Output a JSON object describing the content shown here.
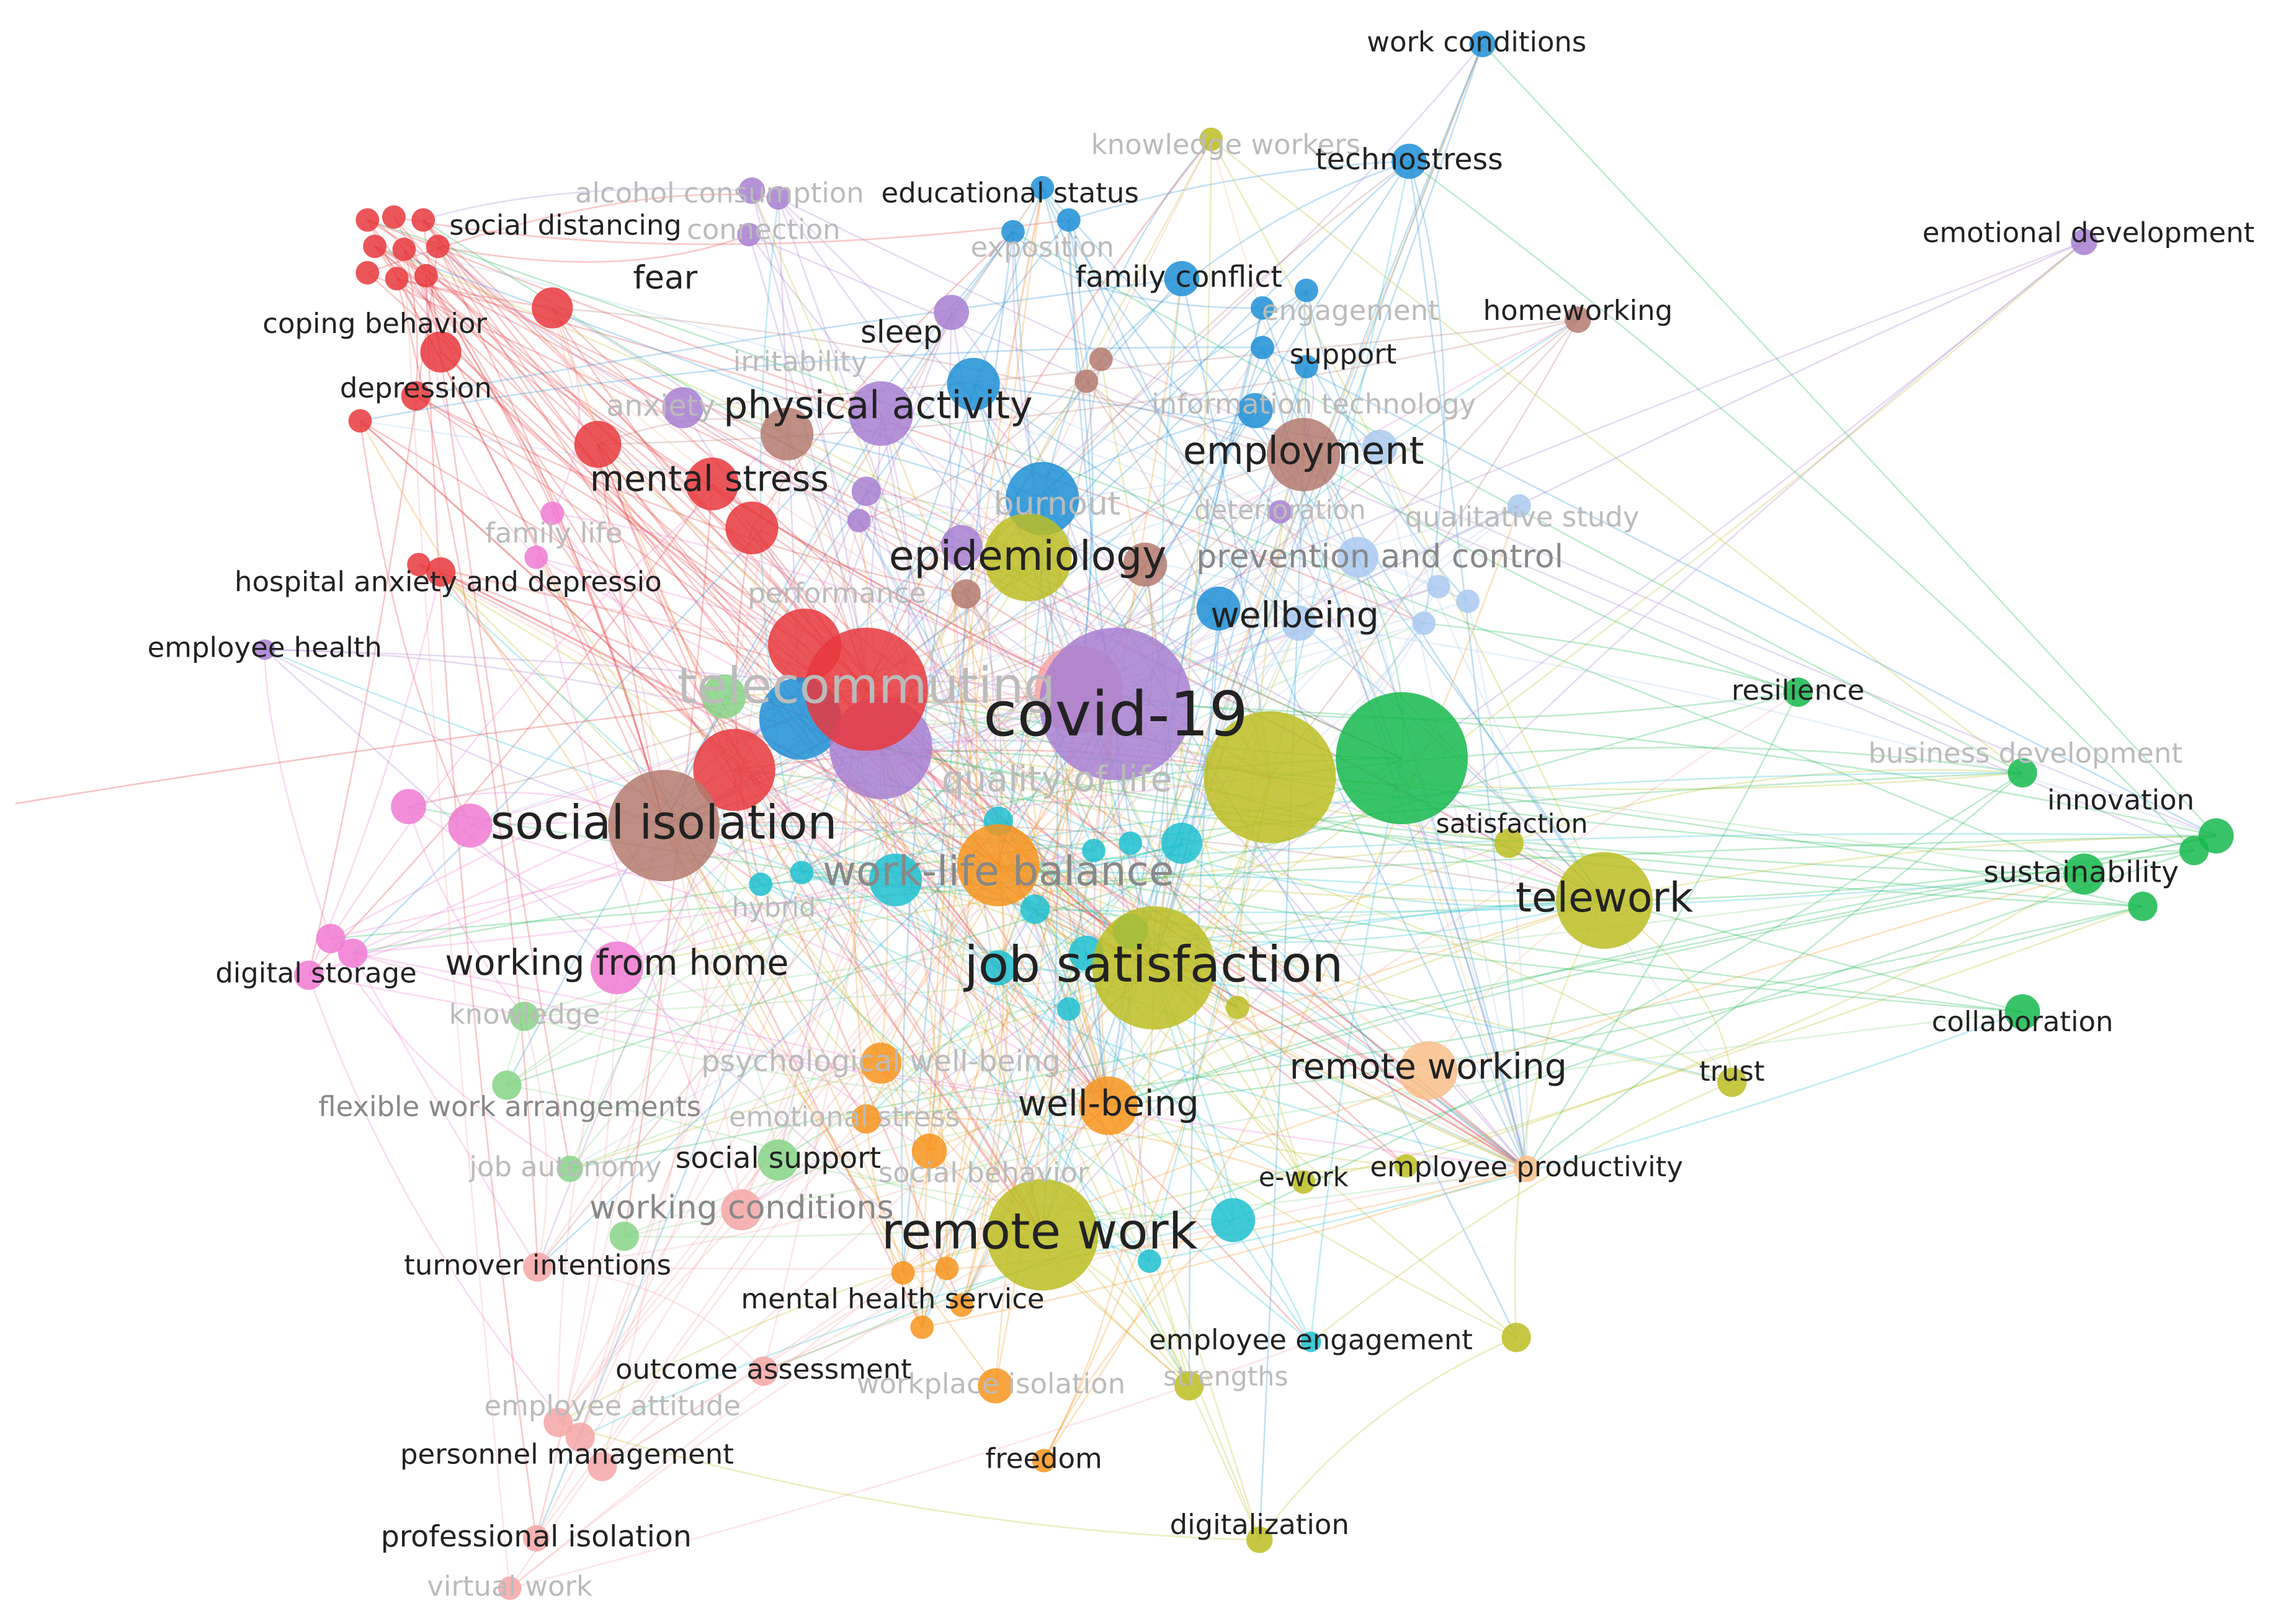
{
  "nodes": [
    {
      "label": "work conditions"
    },
    {
      "label": "knowledge workers"
    },
    {
      "label": "technostress"
    },
    {
      "label": "alcohol consumption"
    },
    {
      "label": "educational status"
    },
    {
      "label": "connection"
    },
    {
      "label": "social distancing"
    },
    {
      "label": "emotional development"
    },
    {
      "label": "exposition"
    },
    {
      "label": "fear"
    },
    {
      "label": "family conflict"
    },
    {
      "label": "coping behavior"
    },
    {
      "label": "sleep"
    },
    {
      "label": "engagement"
    },
    {
      "label": "homeworking"
    },
    {
      "label": "support"
    },
    {
      "label": "irritability"
    },
    {
      "label": "depression"
    },
    {
      "label": "anxiety"
    },
    {
      "label": "physical activity"
    },
    {
      "label": "information technology"
    },
    {
      "label": "employment"
    },
    {
      "label": "mental stress"
    },
    {
      "label": "burnout"
    },
    {
      "label": "deterioration"
    },
    {
      "label": "qualitative study"
    },
    {
      "label": "family life"
    },
    {
      "label": "epidemiology"
    },
    {
      "label": "prevention and control"
    },
    {
      "label": "hospital anxiety and depressio"
    },
    {
      "label": "performance"
    },
    {
      "label": "wellbeing"
    },
    {
      "label": "employee health"
    },
    {
      "label": "resilience"
    },
    {
      "label": "telecommuting"
    },
    {
      "label": "covid-19"
    },
    {
      "label": "quality of life"
    },
    {
      "label": "business development"
    },
    {
      "label": "satisfaction"
    },
    {
      "label": "innovation"
    },
    {
      "label": "social isolation"
    },
    {
      "label": "work-life balance"
    },
    {
      "label": "sustainability"
    },
    {
      "label": "telework"
    },
    {
      "label": "hybrid"
    },
    {
      "label": "digital storage"
    },
    {
      "label": "working from home"
    },
    {
      "label": "job satisfaction"
    },
    {
      "label": "knowledge"
    },
    {
      "label": "collaboration"
    },
    {
      "label": "psychological well-being"
    },
    {
      "label": "remote working"
    },
    {
      "label": "trust"
    },
    {
      "label": "flexible work arrangements"
    },
    {
      "label": "emotional stress"
    },
    {
      "label": "well-being"
    },
    {
      "label": "social support"
    },
    {
      "label": "job autonomy"
    },
    {
      "label": "social behavior"
    },
    {
      "label": "e-work"
    },
    {
      "label": "employee productivity"
    },
    {
      "label": "working conditions"
    },
    {
      "label": "remote work"
    },
    {
      "label": "turnover intentions"
    },
    {
      "label": "mental health service"
    },
    {
      "label": "employee engagement"
    },
    {
      "label": "outcome assessment"
    },
    {
      "label": "workplace isolation"
    },
    {
      "label": "strengths"
    },
    {
      "label": "employee attitude"
    },
    {
      "label": "personnel management"
    },
    {
      "label": "freedom"
    },
    {
      "label": "digitalization"
    },
    {
      "label": "professional isolation"
    },
    {
      "label": "virtual work"
    }
  ]
}
